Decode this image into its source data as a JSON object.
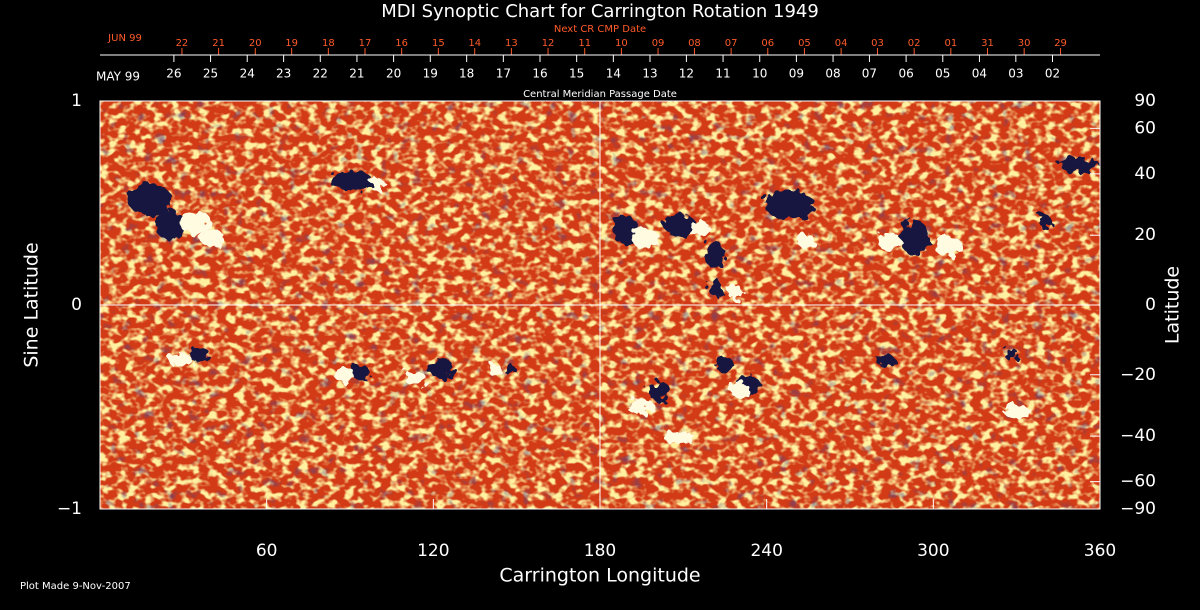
{
  "chart_data": {
    "type": "synoptic-map",
    "title": "MDI Synoptic Chart for Carrington Rotation 1949",
    "xlabel": "Carrington Longitude",
    "ylabel": "Sine Latitude",
    "y2label": "Latitude",
    "footnote": "Plot Made  9-Nov-2007",
    "xlim": [
      0,
      360
    ],
    "xticks": [
      60,
      120,
      180,
      240,
      300,
      360
    ],
    "ylim": [
      -1,
      1
    ],
    "yticks": [
      {
        "value": -1,
        "label": "−1"
      },
      0,
      1
    ],
    "y2scale": "sine",
    "y2lim": [
      -90,
      90
    ],
    "y2ticks": [
      {
        "value": -90,
        "label": "−90"
      },
      {
        "value": -60,
        "label": "−60"
      },
      {
        "value": -40,
        "label": "−40"
      },
      {
        "value": -20,
        "label": "−20"
      },
      0,
      20,
      40,
      60,
      90
    ],
    "crosshair": {
      "x": 180,
      "y": 0
    },
    "top_axes": [
      {
        "title": "Next CR CMP Date",
        "start_label": "JUN 99",
        "color": "#ff5a2a",
        "ticks": [
          {
            "value": 29.5,
            "label": "22"
          },
          {
            "value": 42.7,
            "label": "21"
          },
          {
            "value": 55.9,
            "label": "20"
          },
          {
            "value": 69.0,
            "label": "19"
          },
          {
            "value": 82.2,
            "label": "18"
          },
          {
            "value": 95.4,
            "label": "17"
          },
          {
            "value": 108.6,
            "label": "16"
          },
          {
            "value": 121.8,
            "label": "15"
          },
          {
            "value": 134.9,
            "label": "14"
          },
          {
            "value": 148.1,
            "label": "13"
          },
          {
            "value": 161.3,
            "label": "12"
          },
          {
            "value": 174.5,
            "label": "11"
          },
          {
            "value": 187.7,
            "label": "10"
          },
          {
            "value": 200.9,
            "label": "09"
          },
          {
            "value": 214.0,
            "label": "08"
          },
          {
            "value": 227.2,
            "label": "07"
          },
          {
            "value": 240.4,
            "label": "06"
          },
          {
            "value": 253.6,
            "label": "05"
          },
          {
            "value": 266.8,
            "label": "04"
          },
          {
            "value": 279.9,
            "label": "03"
          },
          {
            "value": 293.1,
            "label": "02"
          },
          {
            "value": 306.3,
            "label": "01"
          },
          {
            "value": 319.5,
            "label": "31"
          },
          {
            "value": 332.7,
            "label": "30"
          },
          {
            "value": 345.8,
            "label": "29"
          }
        ]
      },
      {
        "title": "Central Meridian Passage Date",
        "start_label": "MAY 99",
        "color": "#ffffff",
        "ticks": [
          {
            "value": 26.6,
            "label": "26"
          },
          {
            "value": 39.8,
            "label": "25"
          },
          {
            "value": 53.0,
            "label": "24"
          },
          {
            "value": 66.1,
            "label": "23"
          },
          {
            "value": 79.3,
            "label": "22"
          },
          {
            "value": 92.5,
            "label": "21"
          },
          {
            "value": 105.7,
            "label": "20"
          },
          {
            "value": 118.9,
            "label": "19"
          },
          {
            "value": 132.0,
            "label": "18"
          },
          {
            "value": 145.2,
            "label": "17"
          },
          {
            "value": 158.4,
            "label": "16"
          },
          {
            "value": 171.6,
            "label": "15"
          },
          {
            "value": 184.8,
            "label": "14"
          },
          {
            "value": 198.0,
            "label": "13"
          },
          {
            "value": 211.1,
            "label": "12"
          },
          {
            "value": 224.3,
            "label": "11"
          },
          {
            "value": 237.5,
            "label": "10"
          },
          {
            "value": 250.7,
            "label": "09"
          },
          {
            "value": 263.9,
            "label": "08"
          },
          {
            "value": 277.0,
            "label": "07"
          },
          {
            "value": 290.2,
            "label": "06"
          },
          {
            "value": 303.4,
            "label": "05"
          },
          {
            "value": 316.6,
            "label": "04"
          },
          {
            "value": 329.7,
            "label": "03"
          },
          {
            "value": 342.9,
            "label": "02"
          }
        ]
      }
    ]
  }
}
